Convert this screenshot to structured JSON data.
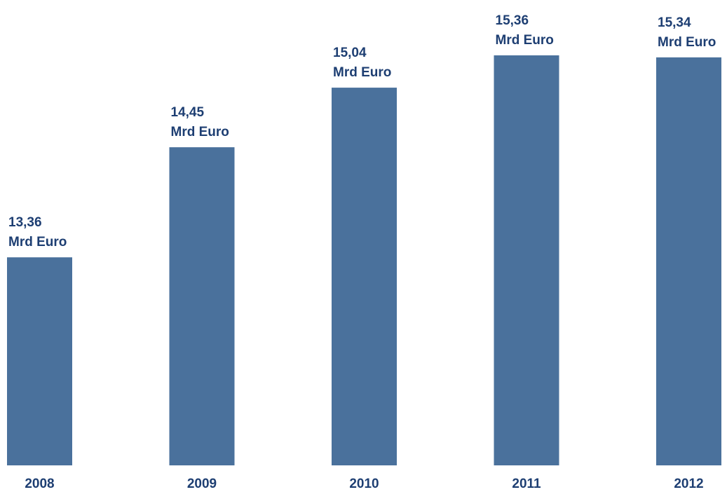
{
  "chart_data": {
    "type": "bar",
    "title": "",
    "xlabel": "",
    "ylabel": "",
    "categories": [
      "2008",
      "2009",
      "2010",
      "2011",
      "2012"
    ],
    "values": [
      13.36,
      14.45,
      15.04,
      15.36,
      15.34
    ],
    "value_labels": [
      "13,36",
      "14,45",
      "15,04",
      "15,36",
      "15,34"
    ],
    "unit_label": "Mrd Euro",
    "ylim": [
      11.3,
      15.45
    ],
    "grid": false,
    "legend": "none",
    "colors": {
      "bar": "#4A719C",
      "text": "#1D3E72",
      "background": "#FFFFFF"
    }
  }
}
